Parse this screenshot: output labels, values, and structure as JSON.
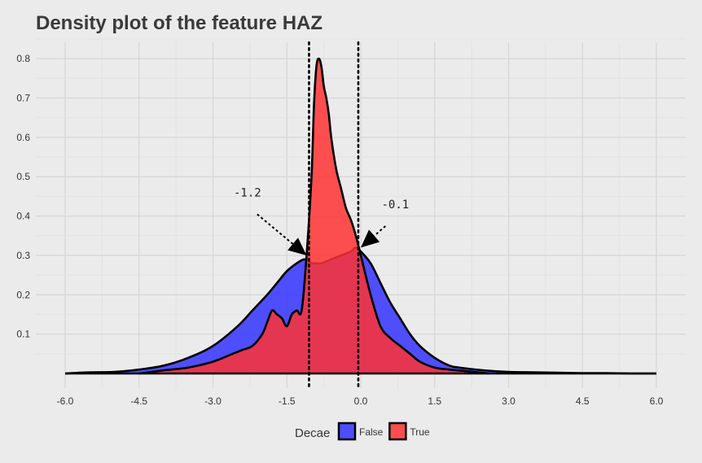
{
  "chart_data": {
    "type": "area",
    "title": "Density plot of the feature HAZ",
    "xlabel": "",
    "ylabel": "",
    "xlim": [
      -6.0,
      6.0
    ],
    "ylim": [
      0,
      0.8
    ],
    "x_ticks": [
      "-6.0",
      "-4.5",
      "-3.0",
      "-1.5",
      "0.0",
      "1.5",
      "3.0",
      "4.5",
      "6.0"
    ],
    "y_ticks": [
      "0.1",
      "0.2",
      "0.3",
      "0.4",
      "0.5",
      "0.6",
      "0.7",
      "0.8"
    ],
    "grid": true,
    "legend": {
      "title": "Decae",
      "position": "bottom"
    },
    "series": [
      {
        "name": "False",
        "color": "#3333ff",
        "x": [
          -6.0,
          -5.5,
          -5.0,
          -4.5,
          -4.0,
          -3.5,
          -3.0,
          -2.5,
          -2.2,
          -1.9,
          -1.7,
          -1.5,
          -1.3,
          -1.15,
          -1.05,
          -1.0,
          -0.9,
          -0.8,
          -0.6,
          -0.4,
          -0.2,
          -0.1,
          0.0,
          0.2,
          0.4,
          0.6,
          0.8,
          1.0,
          1.2,
          1.5,
          1.8,
          2.0,
          2.5,
          3.0,
          3.5,
          4.0,
          4.5,
          5.0,
          5.5,
          6.0
        ],
        "y": [
          0.0,
          0.003,
          0.004,
          0.01,
          0.02,
          0.04,
          0.07,
          0.12,
          0.16,
          0.2,
          0.23,
          0.26,
          0.28,
          0.29,
          0.285,
          0.28,
          0.28,
          0.28,
          0.29,
          0.3,
          0.31,
          0.32,
          0.31,
          0.28,
          0.23,
          0.18,
          0.14,
          0.1,
          0.07,
          0.04,
          0.02,
          0.015,
          0.008,
          0.004,
          0.003,
          0.002,
          0.001,
          0.001,
          0.0,
          0.0
        ]
      },
      {
        "name": "True",
        "color": "#ff3333",
        "x": [
          -4.5,
          -4.0,
          -3.5,
          -3.0,
          -2.6,
          -2.4,
          -2.2,
          -2.0,
          -1.9,
          -1.8,
          -1.7,
          -1.6,
          -1.5,
          -1.4,
          -1.3,
          -1.2,
          -1.1,
          -1.0,
          -0.95,
          -0.9,
          -0.85,
          -0.8,
          -0.75,
          -0.7,
          -0.65,
          -0.6,
          -0.5,
          -0.4,
          -0.3,
          -0.2,
          -0.1,
          0.0,
          0.2,
          0.4,
          0.6,
          0.8,
          1.0,
          1.2,
          1.5,
          1.8,
          2.2,
          2.6
        ],
        "y": [
          0.0,
          0.008,
          0.015,
          0.03,
          0.05,
          0.06,
          0.07,
          0.1,
          0.13,
          0.16,
          0.15,
          0.14,
          0.12,
          0.15,
          0.16,
          0.16,
          0.3,
          0.5,
          0.68,
          0.78,
          0.8,
          0.78,
          0.73,
          0.7,
          0.66,
          0.6,
          0.52,
          0.47,
          0.42,
          0.39,
          0.35,
          0.3,
          0.2,
          0.12,
          0.09,
          0.07,
          0.05,
          0.03,
          0.015,
          0.01,
          0.005,
          0.0
        ]
      }
    ],
    "vlines": [
      -1.05,
      -0.05
    ],
    "annotations": [
      {
        "text": "-1.2",
        "x": -2.3,
        "y": 0.45,
        "arrow_to_x": -1.1,
        "arrow_to_y": 0.3
      },
      {
        "text": "-0.1",
        "x": 0.7,
        "y": 0.42,
        "arrow_to_x": 0.0,
        "arrow_to_y": 0.32
      }
    ]
  }
}
